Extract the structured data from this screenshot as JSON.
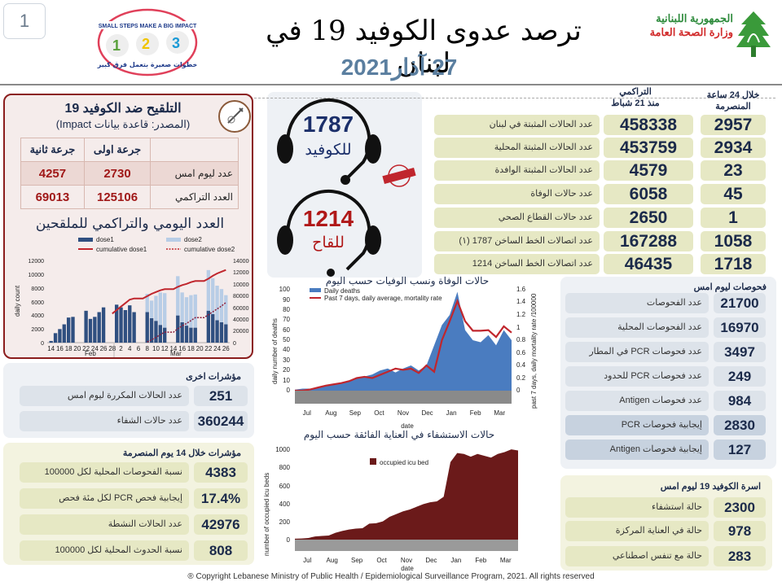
{
  "page_number": "1",
  "header": {
    "title": "ترصد عدوى الكوفيد 19 في لبنان",
    "date": "27 آذار2021",
    "ministry_line1": "الجمهورية اللبنانية",
    "ministry_line2": "وزارة الصحة العامة",
    "impact_logo_text": "SMALL STEPS MAKE A BIG IMPACT",
    "impact_logo_arabic": "خطوات صغيرة بتعمل فرق كبير"
  },
  "vaccination": {
    "title": "التلقيح ضد الكوفيد 19",
    "source": "(المصدر: قاعدة بيانات Impact)",
    "columns": [
      "",
      "جرعة اولى",
      "جرعة ثانية"
    ],
    "rows": [
      {
        "label": "عدد ليوم امس",
        "dose1": "2730",
        "dose2": "4257"
      },
      {
        "label": "العدد التراكمي",
        "dose1": "125106",
        "dose2": "69013"
      }
    ],
    "chart_title": "العدد اليومي والتراكمي للملقحين"
  },
  "hotlines": {
    "covid": {
      "number": "1787",
      "label": "للكوفيد"
    },
    "vaccine": {
      "number": "1214",
      "label": "للقاح"
    },
    "stamp": "TOLL FREE مجاني"
  },
  "main_stats": {
    "header_cumulative": "التراكمي",
    "header_cumulative_sub": "منذ 21 شباط",
    "header_24h": "خلال 24 ساعة",
    "header_24h_sub": "المنصرمة",
    "rows": [
      {
        "label": "عدد الحالات المثبتة في لبنان",
        "cumulative": "458338",
        "last24": "2957"
      },
      {
        "label": "عدد الحالات المثبتة المحلية",
        "cumulative": "453759",
        "last24": "2934"
      },
      {
        "label": "عدد الحالات المثبتة الوافدة",
        "cumulative": "4579",
        "last24": "23"
      },
      {
        "label": "عدد حالات الوفاة",
        "cumulative": "6058",
        "last24": "45"
      },
      {
        "label": "عدد حالات القطاع الصحي",
        "cumulative": "2650",
        "last24": "1"
      },
      {
        "label": "عدد اتصالات الخط الساخن 1787 (١)",
        "cumulative": "167288",
        "last24": "1058"
      },
      {
        "label": "عدد اتصالات الخط الساخن 1214",
        "cumulative": "46435",
        "last24": "1718"
      }
    ]
  },
  "tests": {
    "title": "فحوصات ليوم امس",
    "rows": [
      {
        "label": "عدد الفحوصات",
        "value": "21700"
      },
      {
        "label": "عدد الفحوصات المحلية",
        "value": "16970"
      },
      {
        "label": "عدد فحوصات PCR في المطار",
        "value": "3497"
      },
      {
        "label": "عدد فحوصات PCR للحدود",
        "value": "249"
      },
      {
        "label": "عدد فحوصات Antigen",
        "value": "984"
      },
      {
        "label": "إيجابية فحوصات PCR",
        "value": "2830"
      },
      {
        "label": "إيجابية فحوصات Antigen",
        "value": "127"
      }
    ]
  },
  "family": {
    "title": "اسرة الكوفيد 19 ليوم امس",
    "rows": [
      {
        "label": "حالة استشفاء",
        "value": "2300"
      },
      {
        "label": "حالة في العناية المركزة",
        "value": "978"
      },
      {
        "label": "حالة مع تنفس اصطناعي",
        "value": "283"
      }
    ]
  },
  "other_indicators": {
    "title": "مؤشرات اخرى",
    "rows": [
      {
        "label": "عدد الحالات المكررة ليوم امس",
        "value": "251"
      },
      {
        "label": "عدد حالات الشفاء",
        "value": "360244"
      }
    ]
  },
  "indicators_14d": {
    "title": "مؤشرات خلال 14 يوم المنصرمة",
    "rows": [
      {
        "label": "نسبة الفحوصات المحلية لكل 100000",
        "value": "4383"
      },
      {
        "label": "إيجابية فحص PCR لكل مئة فحص",
        "value": "17.4%"
      },
      {
        "label": "عدد الحالات النشطة",
        "value": "42976"
      },
      {
        "label": "نسبة الحدوث المحلية لكل 100000",
        "value": "808"
      }
    ]
  },
  "deaths_chart_title": "حالات الوفاة ونسب الوفيات حسب اليوم",
  "icu_chart_title": "حالات الاستشفاء في العناية الفائقة حسب اليوم",
  "copyright": "® Copyright Lebanese Ministry of Public Health / Epidemiological Surveillance Program, 2021. All rights reserved",
  "chart_data": [
    {
      "type": "bar",
      "title": "العدد اليومي والتراكمي للملقحين",
      "xlabel": "",
      "ylabel": "daily count",
      "y2label": "cumulative count",
      "ylim": [
        0,
        12000
      ],
      "y2lim": [
        0,
        140000
      ],
      "categories": [
        "14",
        "15",
        "16",
        "17",
        "18",
        "19",
        "20",
        "21",
        "22",
        "23",
        "24",
        "25",
        "26",
        "27",
        "28",
        "1",
        "2",
        "3",
        "4",
        "5",
        "6",
        "7",
        "8",
        "9",
        "10",
        "11",
        "12",
        "13",
        "14",
        "15",
        "16",
        "17",
        "18",
        "19",
        "20",
        "21",
        "22",
        "23",
        "24",
        "25",
        "26"
      ],
      "month_groups": [
        {
          "label": "Feb",
          "span": 15
        },
        {
          "label": "Mar",
          "span": 26
        }
      ],
      "series": [
        {
          "name": "dose1",
          "type": "bar",
          "values": [
            250,
            1400,
            2000,
            2700,
            3700,
            3800,
            0,
            0,
            4700,
            3500,
            3800,
            4500,
            5200,
            0,
            0,
            5600,
            5200,
            4800,
            5500,
            4500,
            0,
            0,
            4500,
            3600,
            3200,
            2600,
            2200,
            0,
            0,
            4000,
            3000,
            2500,
            2200,
            2200,
            0,
            0,
            4700,
            4200,
            3300,
            3000,
            2700
          ]
        },
        {
          "name": "dose2",
          "type": "bar",
          "values": [
            0,
            0,
            0,
            0,
            0,
            0,
            0,
            0,
            0,
            0,
            0,
            0,
            0,
            0,
            0,
            0,
            0,
            0,
            0,
            0,
            0,
            0,
            2700,
            2600,
            3700,
            4800,
            5100,
            0,
            0,
            5800,
            4400,
            4200,
            4800,
            4900,
            0,
            0,
            6000,
            5300,
            5100,
            4900,
            4300
          ]
        },
        {
          "name": "cumulative dose1",
          "type": "line",
          "axis": "y2",
          "values": [
            null,
            null,
            null,
            null,
            null,
            null,
            null,
            null,
            null,
            null,
            null,
            null,
            null,
            null,
            50000,
            56000,
            62000,
            68000,
            74000,
            76000,
            76000,
            76000,
            80000,
            84000,
            87000,
            90000,
            92000,
            92000,
            92000,
            96000,
            99000,
            101000,
            104000,
            106000,
            106000,
            106000,
            110000,
            115000,
            119000,
            122000,
            125106
          ]
        },
        {
          "name": "cumulative dose2",
          "type": "line",
          "axis": "y2",
          "dashed": true,
          "values": [
            null,
            null,
            null,
            null,
            null,
            null,
            null,
            null,
            null,
            null,
            null,
            null,
            null,
            null,
            null,
            null,
            null,
            null,
            null,
            null,
            null,
            null,
            1000,
            5000,
            9000,
            14000,
            18000,
            18000,
            18000,
            24000,
            29000,
            33000,
            38000,
            43000,
            43000,
            43000,
            48000,
            53000,
            58000,
            63000,
            69013
          ]
        }
      ],
      "legend_position": "top"
    },
    {
      "type": "bar",
      "title": "حالات الوفاة ونسب الوفيات حسب اليوم",
      "xlabel": "date",
      "ylabel": "daily number of deaths",
      "y2label": "past 7 days, daily mortality rate /100000",
      "ylim": [
        0,
        100
      ],
      "y2lim": [
        0,
        1.6
      ],
      "months": [
        "Jul",
        "Aug",
        "Sep",
        "Oct",
        "Nov",
        "Dec",
        "Jan",
        "Feb",
        "Mar"
      ],
      "tick_labels": [
        "1",
        "14",
        "27",
        "9",
        "22",
        "4",
        "17",
        "30",
        "13",
        "26",
        "8",
        "21",
        "4",
        "17",
        "30",
        "12",
        "25",
        "7",
        "20",
        "5",
        "18"
      ],
      "series": [
        {
          "name": "Daily deaths",
          "type": "bar",
          "values": [
            1,
            2,
            2,
            3,
            5,
            6,
            8,
            10,
            12,
            14,
            16,
            20,
            22,
            18,
            22,
            25,
            20,
            25,
            45,
            65,
            75,
            98,
            60,
            50,
            48,
            55,
            45,
            60,
            50
          ]
        },
        {
          "name": "Past 7 days, daily average, mortality rate",
          "type": "line",
          "axis": "y2",
          "values": [
            0,
            0,
            0.02,
            0.05,
            0.08,
            0.1,
            0.12,
            0.15,
            0.2,
            0.22,
            0.2,
            0.25,
            0.3,
            0.35,
            0.33,
            0.35,
            0.28,
            0.4,
            0.3,
            0.8,
            1.1,
            1.42,
            1.1,
            0.95,
            0.95,
            0.96,
            0.85,
            1.02,
            0.92
          ]
        }
      ],
      "grid": false
    },
    {
      "type": "area",
      "title": "حالات الاستشفاء في العناية الفائقة حسب اليوم",
      "xlabel": "date",
      "ylabel": "number of occupied icu beds",
      "ylim": [
        0,
        1000
      ],
      "months": [
        "Jul",
        "Aug",
        "Sep",
        "Oct",
        "Nov",
        "Dec",
        "Jan",
        "Feb",
        "Mar"
      ],
      "tick_labels": [
        "1",
        "11",
        "21",
        "31",
        "10",
        "20",
        "30",
        "9",
        "19",
        "29",
        "9",
        "19",
        "29",
        "8",
        "18",
        "28",
        "8",
        "18",
        "28",
        "7",
        "17",
        "27",
        "6",
        "16",
        "26",
        "8",
        "18"
      ],
      "series": [
        {
          "name": "occupied icu bed",
          "values": [
            10,
            12,
            18,
            35,
            40,
            45,
            75,
            95,
            110,
            120,
            125,
            175,
            180,
            200,
            250,
            280,
            310,
            330,
            360,
            390,
            410,
            420,
            470,
            850,
            950,
            940,
            910,
            940,
            920,
            900,
            940,
            960,
            990,
            978
          ]
        }
      ]
    }
  ]
}
